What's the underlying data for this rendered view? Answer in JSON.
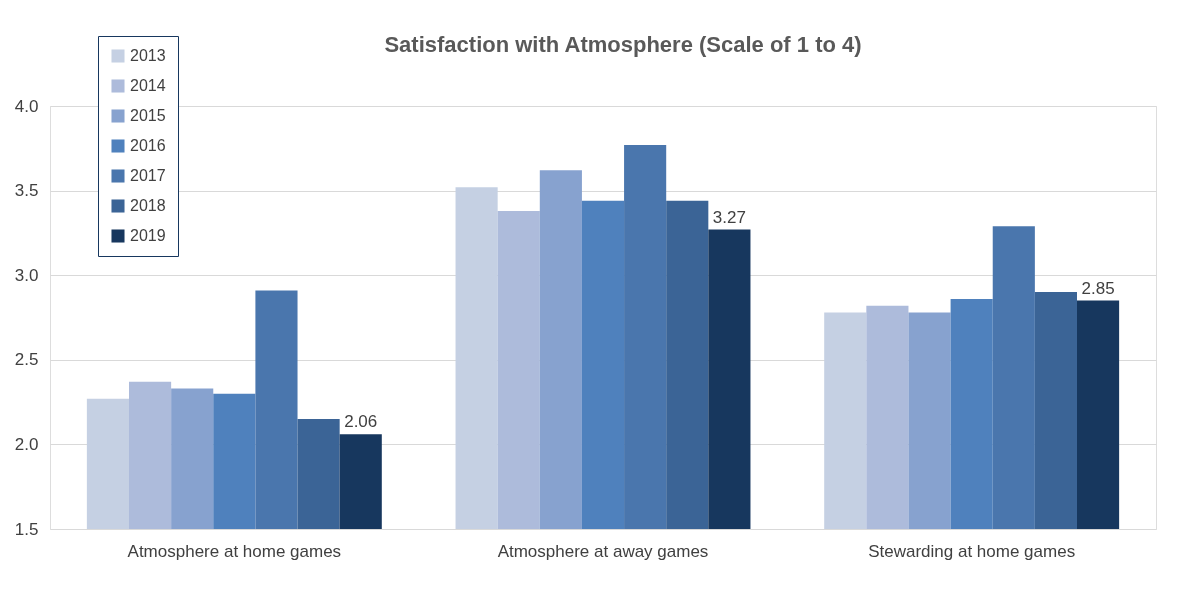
{
  "chart_data": {
    "type": "bar",
    "title": "Satisfaction with Atmosphere (Scale of 1 to 4)",
    "categories": [
      "Atmosphere at home games",
      "Atmosphere at away games",
      "Stewarding at home games"
    ],
    "series": [
      {
        "name": "2013",
        "color": "#c5d0e3",
        "values": [
          2.27,
          3.52,
          2.78
        ]
      },
      {
        "name": "2014",
        "color": "#adbbdb",
        "values": [
          2.37,
          3.38,
          2.82
        ]
      },
      {
        "name": "2015",
        "color": "#87a2cf",
        "values": [
          2.33,
          3.62,
          2.78
        ]
      },
      {
        "name": "2016",
        "color": "#4f81bd",
        "values": [
          2.3,
          3.44,
          2.86
        ]
      },
      {
        "name": "2017",
        "color": "#4a76ad",
        "values": [
          2.91,
          3.77,
          3.29
        ]
      },
      {
        "name": "2018",
        "color": "#3b6496",
        "values": [
          2.15,
          3.44,
          2.9
        ]
      },
      {
        "name": "2019",
        "color": "#17375e",
        "values": [
          2.06,
          3.27,
          2.85
        ],
        "value_labels": [
          "2.06",
          "3.27",
          "2.85"
        ]
      }
    ],
    "ylim": [
      1.5,
      4.0
    ],
    "yticks": [
      1.5,
      {
        "value": 2,
        "label": "2.0"
      },
      2.5,
      {
        "value": 3,
        "label": "3.0"
      },
      3.5,
      {
        "value": 4,
        "label": "4.0"
      }
    ],
    "grid": "y",
    "legend": "top left"
  }
}
